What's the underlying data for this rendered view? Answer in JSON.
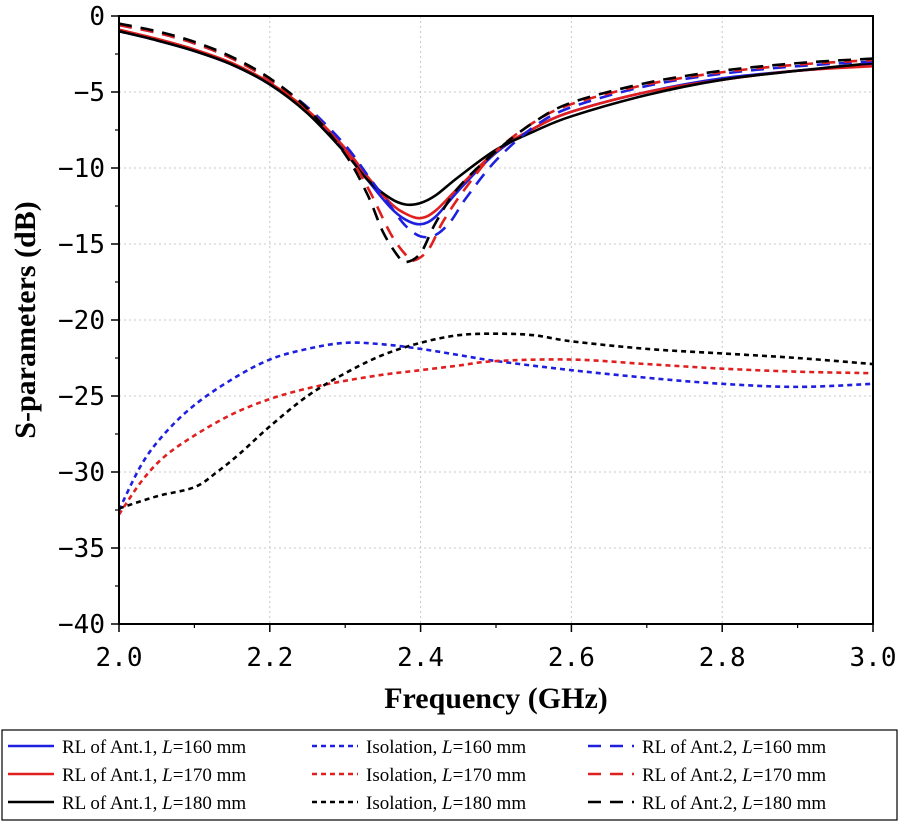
{
  "chart_data": {
    "type": "line",
    "xlabel": "Frequency (GHz)",
    "ylabel": "S-parameters (dB)",
    "xlim": [
      2.0,
      3.0
    ],
    "ylim": [
      -40,
      0
    ],
    "xticks": [
      "2.0",
      "2.2",
      "2.4",
      "2.6",
      "2.8",
      "3.0"
    ],
    "xtick_values": [
      2.0,
      2.2,
      2.4,
      2.6,
      2.8,
      3.0
    ],
    "yticks": [
      "0",
      "−5",
      "−10",
      "−15",
      "−20",
      "−25",
      "−30",
      "−35",
      "−40"
    ],
    "ytick_values": [
      0,
      -5,
      -10,
      -15,
      -20,
      -25,
      -30,
      -35,
      -40
    ],
    "grid": true,
    "legend_position": "bottom",
    "series": [
      {
        "name": "RL of Ant.1, L=160 mm",
        "label_prefix": "RL of Ant.1, ",
        "label_var": "L",
        "label_suffix": "=160 mm",
        "color": "#1f1fe0",
        "style": "solid",
        "x": [
          2.0,
          2.05,
          2.1,
          2.15,
          2.2,
          2.25,
          2.3,
          2.33,
          2.36,
          2.38,
          2.4,
          2.42,
          2.45,
          2.5,
          2.55,
          2.6,
          2.7,
          2.8,
          2.9,
          3.0
        ],
        "y": [
          -1.0,
          -1.6,
          -2.3,
          -3.2,
          -4.5,
          -6.3,
          -8.8,
          -10.8,
          -12.6,
          -13.4,
          -13.7,
          -13.2,
          -11.5,
          -9.0,
          -7.4,
          -6.3,
          -5.0,
          -4.1,
          -3.6,
          -3.2
        ]
      },
      {
        "name": "RL of Ant.1, L=170 mm",
        "label_prefix": "RL of Ant.1, ",
        "label_var": "L",
        "label_suffix": "=170 mm",
        "color": "#e01f1f",
        "style": "solid",
        "x": [
          2.0,
          2.05,
          2.1,
          2.15,
          2.2,
          2.25,
          2.3,
          2.33,
          2.36,
          2.38,
          2.4,
          2.42,
          2.45,
          2.5,
          2.55,
          2.6,
          2.7,
          2.8,
          2.9,
          3.0
        ],
        "y": [
          -0.9,
          -1.5,
          -2.2,
          -3.1,
          -4.4,
          -6.2,
          -8.7,
          -10.6,
          -12.3,
          -13.0,
          -13.3,
          -12.8,
          -11.3,
          -8.9,
          -7.4,
          -6.3,
          -5.0,
          -4.2,
          -3.6,
          -3.3
        ]
      },
      {
        "name": "RL of Ant.1, L=180 mm",
        "label_prefix": "RL of Ant.1, ",
        "label_var": "L",
        "label_suffix": "=180 mm",
        "color": "#000000",
        "style": "solid",
        "x": [
          2.0,
          2.05,
          2.1,
          2.15,
          2.2,
          2.25,
          2.3,
          2.33,
          2.36,
          2.38,
          2.4,
          2.42,
          2.45,
          2.5,
          2.55,
          2.6,
          2.7,
          2.8,
          2.9,
          3.0
        ],
        "y": [
          -1.0,
          -1.6,
          -2.3,
          -3.2,
          -4.5,
          -6.4,
          -9.0,
          -10.8,
          -12.0,
          -12.4,
          -12.3,
          -11.8,
          -10.6,
          -8.8,
          -7.6,
          -6.6,
          -5.2,
          -4.2,
          -3.6,
          -3.1
        ]
      },
      {
        "name": "Isolation, L=160 mm",
        "label_prefix": "Isolation, ",
        "label_var": "L",
        "label_suffix": "=160 mm",
        "color": "#1f1fe0",
        "style": "dotted",
        "x": [
          2.0,
          2.03,
          2.06,
          2.1,
          2.15,
          2.2,
          2.25,
          2.3,
          2.35,
          2.4,
          2.45,
          2.5,
          2.6,
          2.7,
          2.8,
          2.9,
          3.0
        ],
        "y": [
          -32.5,
          -29.5,
          -27.5,
          -25.6,
          -23.9,
          -22.6,
          -21.9,
          -21.5,
          -21.6,
          -21.9,
          -22.3,
          -22.7,
          -23.3,
          -23.8,
          -24.2,
          -24.4,
          -24.2
        ]
      },
      {
        "name": "Isolation, L=170 mm",
        "label_prefix": "Isolation, ",
        "label_var": "L",
        "label_suffix": "=170 mm",
        "color": "#e01f1f",
        "style": "dotted",
        "x": [
          2.0,
          2.03,
          2.06,
          2.1,
          2.15,
          2.2,
          2.25,
          2.3,
          2.35,
          2.4,
          2.45,
          2.5,
          2.6,
          2.7,
          2.8,
          2.9,
          3.0
        ],
        "y": [
          -32.8,
          -30.6,
          -29.0,
          -27.6,
          -26.2,
          -25.2,
          -24.5,
          -24.0,
          -23.6,
          -23.3,
          -23.0,
          -22.7,
          -22.6,
          -22.9,
          -23.2,
          -23.4,
          -23.5
        ]
      },
      {
        "name": "Isolation, L=180 mm",
        "label_prefix": "Isolation, ",
        "label_var": "L",
        "label_suffix": "=180 mm",
        "color": "#000000",
        "style": "dotted",
        "x": [
          2.0,
          2.05,
          2.1,
          2.13,
          2.16,
          2.2,
          2.25,
          2.3,
          2.35,
          2.4,
          2.45,
          2.5,
          2.55,
          2.6,
          2.7,
          2.8,
          2.9,
          3.0
        ],
        "y": [
          -32.4,
          -31.6,
          -31.0,
          -30.0,
          -28.8,
          -27.0,
          -25.0,
          -23.5,
          -22.3,
          -21.5,
          -21.0,
          -20.9,
          -21.0,
          -21.4,
          -21.9,
          -22.2,
          -22.5,
          -22.9
        ]
      },
      {
        "name": "RL of Ant.2, L=160 mm",
        "label_prefix": "RL of Ant.2, ",
        "label_var": "L",
        "label_suffix": "=160 mm",
        "color": "#1f1fe0",
        "style": "dashed",
        "x": [
          2.0,
          2.05,
          2.1,
          2.15,
          2.2,
          2.25,
          2.3,
          2.33,
          2.36,
          2.38,
          2.4,
          2.42,
          2.44,
          2.46,
          2.5,
          2.55,
          2.6,
          2.7,
          2.8,
          2.9,
          3.0
        ],
        "y": [
          -0.6,
          -1.1,
          -1.8,
          -2.8,
          -4.2,
          -6.0,
          -8.5,
          -10.5,
          -12.5,
          -13.8,
          -14.5,
          -14.4,
          -13.5,
          -12.0,
          -9.5,
          -7.3,
          -6.0,
          -4.6,
          -3.8,
          -3.3,
          -3.0
        ]
      },
      {
        "name": "RL of Ant.2, L=170 mm",
        "label_prefix": "RL of Ant.2, ",
        "label_var": "L",
        "label_suffix": "=170 mm",
        "color": "#e01f1f",
        "style": "dashed",
        "x": [
          2.0,
          2.05,
          2.1,
          2.15,
          2.2,
          2.25,
          2.3,
          2.33,
          2.36,
          2.38,
          2.39,
          2.41,
          2.43,
          2.46,
          2.5,
          2.55,
          2.6,
          2.7,
          2.8,
          2.9,
          3.0
        ],
        "y": [
          -0.6,
          -1.1,
          -1.8,
          -2.8,
          -4.2,
          -6.1,
          -8.9,
          -11.3,
          -14.3,
          -15.7,
          -16.1,
          -15.4,
          -13.5,
          -11.3,
          -8.9,
          -7.0,
          -5.8,
          -4.5,
          -3.7,
          -3.2,
          -2.9
        ]
      },
      {
        "name": "RL of Ant.2, L=180 mm",
        "label_prefix": "RL of Ant.2, ",
        "label_var": "L",
        "label_suffix": "=180 mm",
        "color": "#000000",
        "style": "dashed",
        "x": [
          2.0,
          2.05,
          2.1,
          2.15,
          2.2,
          2.25,
          2.3,
          2.33,
          2.35,
          2.37,
          2.38,
          2.4,
          2.42,
          2.45,
          2.5,
          2.55,
          2.6,
          2.7,
          2.8,
          2.9,
          3.0
        ],
        "y": [
          -0.5,
          -1.0,
          -1.7,
          -2.7,
          -4.1,
          -6.1,
          -9.1,
          -11.8,
          -14.2,
          -15.8,
          -16.2,
          -15.6,
          -13.6,
          -11.3,
          -8.9,
          -7.0,
          -5.7,
          -4.4,
          -3.6,
          -3.1,
          -2.8
        ]
      }
    ]
  }
}
